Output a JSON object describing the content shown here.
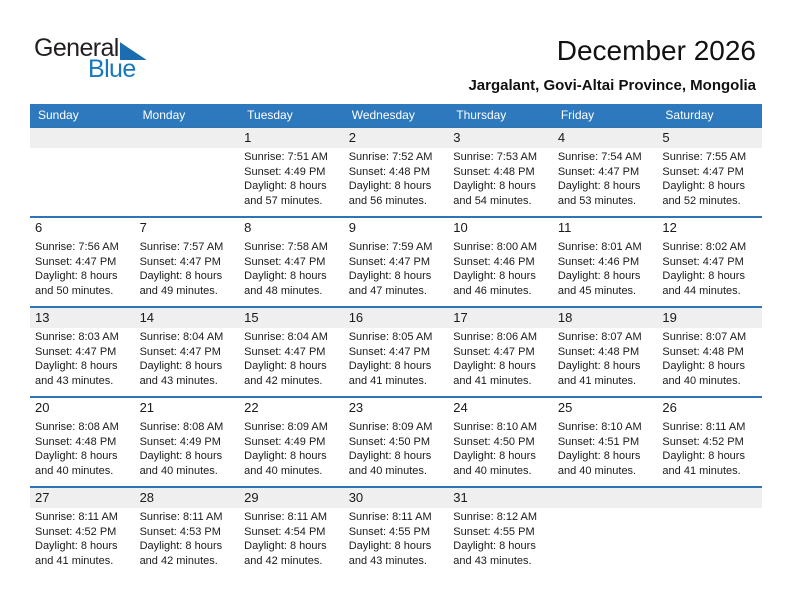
{
  "colors": {
    "header_bg": "#2E78BE",
    "header_text": "#FFFFFF",
    "row_line": "#2E75B6",
    "band_gray": "#EFEFEF",
    "logo_blue": "#1778BE",
    "logo_triangle": "#1B6DB0"
  },
  "logo": {
    "general": "General",
    "blue": "Blue"
  },
  "header": {
    "title": "December 2026",
    "subtitle": "Jargalant, Govi-Altai Province, Mongolia"
  },
  "weekdays": [
    "Sunday",
    "Monday",
    "Tuesday",
    "Wednesday",
    "Thursday",
    "Friday",
    "Saturday"
  ],
  "weeks": [
    {
      "shaded": true,
      "days": [
        null,
        null,
        {
          "day": "1",
          "sunrise": "Sunrise: 7:51 AM",
          "sunset": "Sunset: 4:49 PM",
          "daylight1": "Daylight: 8 hours",
          "daylight2": "and 57 minutes."
        },
        {
          "day": "2",
          "sunrise": "Sunrise: 7:52 AM",
          "sunset": "Sunset: 4:48 PM",
          "daylight1": "Daylight: 8 hours",
          "daylight2": "and 56 minutes."
        },
        {
          "day": "3",
          "sunrise": "Sunrise: 7:53 AM",
          "sunset": "Sunset: 4:48 PM",
          "daylight1": "Daylight: 8 hours",
          "daylight2": "and 54 minutes."
        },
        {
          "day": "4",
          "sunrise": "Sunrise: 7:54 AM",
          "sunset": "Sunset: 4:47 PM",
          "daylight1": "Daylight: 8 hours",
          "daylight2": "and 53 minutes."
        },
        {
          "day": "5",
          "sunrise": "Sunrise: 7:55 AM",
          "sunset": "Sunset: 4:47 PM",
          "daylight1": "Daylight: 8 hours",
          "daylight2": "and 52 minutes."
        }
      ]
    },
    {
      "shaded": false,
      "days": [
        {
          "day": "6",
          "sunrise": "Sunrise: 7:56 AM",
          "sunset": "Sunset: 4:47 PM",
          "daylight1": "Daylight: 8 hours",
          "daylight2": "and 50 minutes."
        },
        {
          "day": "7",
          "sunrise": "Sunrise: 7:57 AM",
          "sunset": "Sunset: 4:47 PM",
          "daylight1": "Daylight: 8 hours",
          "daylight2": "and 49 minutes."
        },
        {
          "day": "8",
          "sunrise": "Sunrise: 7:58 AM",
          "sunset": "Sunset: 4:47 PM",
          "daylight1": "Daylight: 8 hours",
          "daylight2": "and 48 minutes."
        },
        {
          "day": "9",
          "sunrise": "Sunrise: 7:59 AM",
          "sunset": "Sunset: 4:47 PM",
          "daylight1": "Daylight: 8 hours",
          "daylight2": "and 47 minutes."
        },
        {
          "day": "10",
          "sunrise": "Sunrise: 8:00 AM",
          "sunset": "Sunset: 4:46 PM",
          "daylight1": "Daylight: 8 hours",
          "daylight2": "and 46 minutes."
        },
        {
          "day": "11",
          "sunrise": "Sunrise: 8:01 AM",
          "sunset": "Sunset: 4:46 PM",
          "daylight1": "Daylight: 8 hours",
          "daylight2": "and 45 minutes."
        },
        {
          "day": "12",
          "sunrise": "Sunrise: 8:02 AM",
          "sunset": "Sunset: 4:47 PM",
          "daylight1": "Daylight: 8 hours",
          "daylight2": "and 44 minutes."
        }
      ]
    },
    {
      "shaded": true,
      "days": [
        {
          "day": "13",
          "sunrise": "Sunrise: 8:03 AM",
          "sunset": "Sunset: 4:47 PM",
          "daylight1": "Daylight: 8 hours",
          "daylight2": "and 43 minutes."
        },
        {
          "day": "14",
          "sunrise": "Sunrise: 8:04 AM",
          "sunset": "Sunset: 4:47 PM",
          "daylight1": "Daylight: 8 hours",
          "daylight2": "and 43 minutes."
        },
        {
          "day": "15",
          "sunrise": "Sunrise: 8:04 AM",
          "sunset": "Sunset: 4:47 PM",
          "daylight1": "Daylight: 8 hours",
          "daylight2": "and 42 minutes."
        },
        {
          "day": "16",
          "sunrise": "Sunrise: 8:05 AM",
          "sunset": "Sunset: 4:47 PM",
          "daylight1": "Daylight: 8 hours",
          "daylight2": "and 41 minutes."
        },
        {
          "day": "17",
          "sunrise": "Sunrise: 8:06 AM",
          "sunset": "Sunset: 4:47 PM",
          "daylight1": "Daylight: 8 hours",
          "daylight2": "and 41 minutes."
        },
        {
          "day": "18",
          "sunrise": "Sunrise: 8:07 AM",
          "sunset": "Sunset: 4:48 PM",
          "daylight1": "Daylight: 8 hours",
          "daylight2": "and 41 minutes."
        },
        {
          "day": "19",
          "sunrise": "Sunrise: 8:07 AM",
          "sunset": "Sunset: 4:48 PM",
          "daylight1": "Daylight: 8 hours",
          "daylight2": "and 40 minutes."
        }
      ]
    },
    {
      "shaded": false,
      "days": [
        {
          "day": "20",
          "sunrise": "Sunrise: 8:08 AM",
          "sunset": "Sunset: 4:48 PM",
          "daylight1": "Daylight: 8 hours",
          "daylight2": "and 40 minutes."
        },
        {
          "day": "21",
          "sunrise": "Sunrise: 8:08 AM",
          "sunset": "Sunset: 4:49 PM",
          "daylight1": "Daylight: 8 hours",
          "daylight2": "and 40 minutes."
        },
        {
          "day": "22",
          "sunrise": "Sunrise: 8:09 AM",
          "sunset": "Sunset: 4:49 PM",
          "daylight1": "Daylight: 8 hours",
          "daylight2": "and 40 minutes."
        },
        {
          "day": "23",
          "sunrise": "Sunrise: 8:09 AM",
          "sunset": "Sunset: 4:50 PM",
          "daylight1": "Daylight: 8 hours",
          "daylight2": "and 40 minutes."
        },
        {
          "day": "24",
          "sunrise": "Sunrise: 8:10 AM",
          "sunset": "Sunset: 4:50 PM",
          "daylight1": "Daylight: 8 hours",
          "daylight2": "and 40 minutes."
        },
        {
          "day": "25",
          "sunrise": "Sunrise: 8:10 AM",
          "sunset": "Sunset: 4:51 PM",
          "daylight1": "Daylight: 8 hours",
          "daylight2": "and 40 minutes."
        },
        {
          "day": "26",
          "sunrise": "Sunrise: 8:11 AM",
          "sunset": "Sunset: 4:52 PM",
          "daylight1": "Daylight: 8 hours",
          "daylight2": "and 41 minutes."
        }
      ]
    },
    {
      "shaded": true,
      "days": [
        {
          "day": "27",
          "sunrise": "Sunrise: 8:11 AM",
          "sunset": "Sunset: 4:52 PM",
          "daylight1": "Daylight: 8 hours",
          "daylight2": "and 41 minutes."
        },
        {
          "day": "28",
          "sunrise": "Sunrise: 8:11 AM",
          "sunset": "Sunset: 4:53 PM",
          "daylight1": "Daylight: 8 hours",
          "daylight2": "and 42 minutes."
        },
        {
          "day": "29",
          "sunrise": "Sunrise: 8:11 AM",
          "sunset": "Sunset: 4:54 PM",
          "daylight1": "Daylight: 8 hours",
          "daylight2": "and 42 minutes."
        },
        {
          "day": "30",
          "sunrise": "Sunrise: 8:11 AM",
          "sunset": "Sunset: 4:55 PM",
          "daylight1": "Daylight: 8 hours",
          "daylight2": "and 43 minutes."
        },
        {
          "day": "31",
          "sunrise": "Sunrise: 8:12 AM",
          "sunset": "Sunset: 4:55 PM",
          "daylight1": "Daylight: 8 hours",
          "daylight2": "and 43 minutes."
        },
        null,
        null
      ]
    }
  ]
}
